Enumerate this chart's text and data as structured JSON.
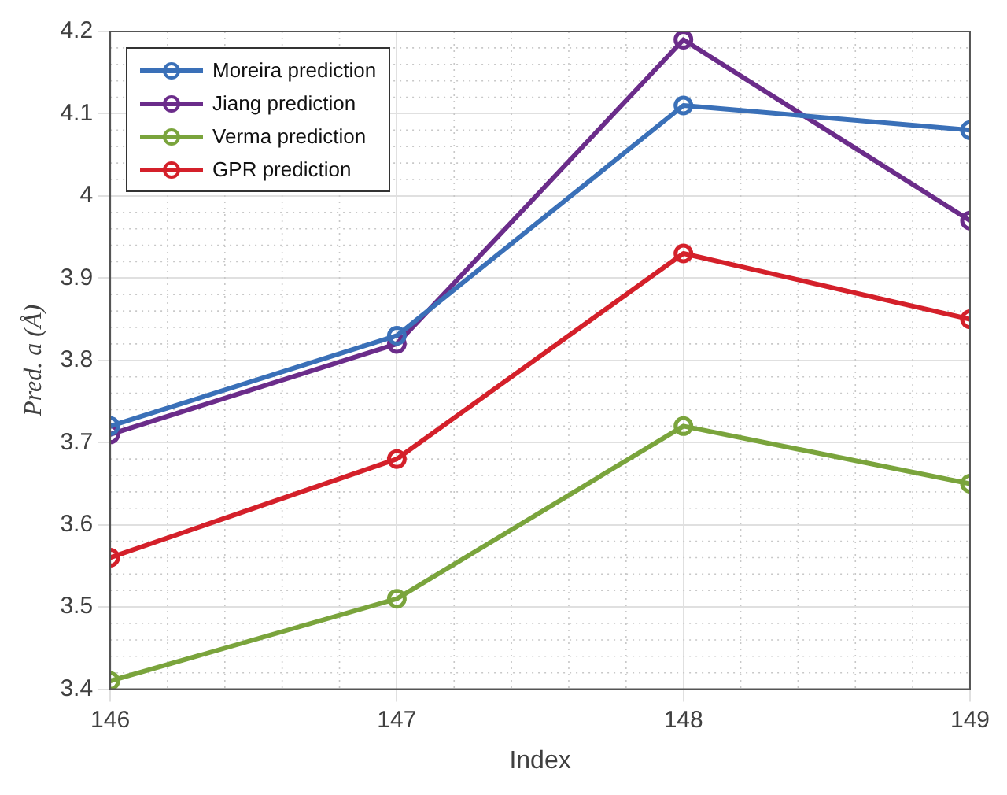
{
  "chart_data": {
    "type": "line",
    "xlabel": "Index",
    "ylabel": "Pred. a (Å)",
    "x": [
      146,
      147,
      148,
      149
    ],
    "series": [
      {
        "name": "Moreira prediction",
        "color": "#3a70b8",
        "values": [
          3.72,
          3.83,
          4.11,
          4.08
        ]
      },
      {
        "name": "Jiang prediction",
        "color": "#6b2c8a",
        "values": [
          3.71,
          3.82,
          4.19,
          3.97
        ]
      },
      {
        "name": "Verma prediction",
        "color": "#7aa43c",
        "values": [
          3.41,
          3.51,
          3.72,
          3.65
        ]
      },
      {
        "name": "GPR prediction",
        "color": "#d4202a",
        "values": [
          3.56,
          3.68,
          3.93,
          3.85
        ]
      }
    ],
    "xlim": [
      146,
      149
    ],
    "xticks": [
      146,
      147,
      148,
      149
    ],
    "ylim": [
      3.4,
      4.2
    ],
    "yticks": [
      3.4,
      3.5,
      3.6,
      3.7,
      3.8,
      3.9,
      4,
      4.1,
      4.2
    ],
    "grid": true,
    "legend": "top left",
    "marker": "circle",
    "line_style": "solid"
  }
}
